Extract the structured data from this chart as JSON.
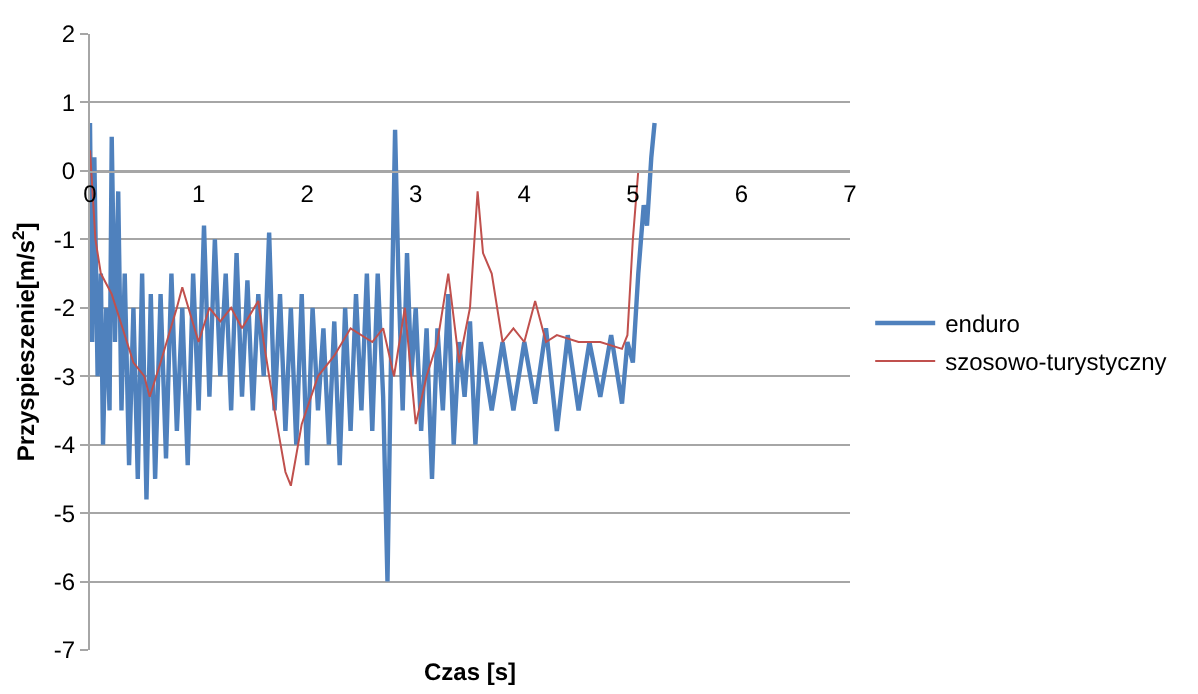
{
  "chart_data": {
    "type": "line",
    "xlabel": "Czas [s]",
    "ylabel": "Przyspieszenie[m/s$^{2}$]",
    "xlim": [
      0,
      7
    ],
    "xticks": [
      0,
      1,
      2,
      3,
      4,
      5,
      6,
      7
    ],
    "ylim": [
      -7,
      2
    ],
    "yticks": [
      -7,
      -6,
      -5,
      -4,
      -3,
      -2,
      -1,
      0,
      1,
      2
    ],
    "grid": "y",
    "legend": "right",
    "marker": "none",
    "line_style": "solid",
    "series": [
      {
        "name": "enduro",
        "color": "#4f81bd",
        "x": [
          0,
          0.02,
          0.04,
          0.07,
          0.1,
          0.12,
          0.15,
          0.18,
          0.2,
          0.23,
          0.26,
          0.29,
          0.32,
          0.36,
          0.4,
          0.44,
          0.48,
          0.52,
          0.56,
          0.6,
          0.65,
          0.7,
          0.75,
          0.8,
          0.85,
          0.9,
          0.95,
          1.0,
          1.05,
          1.1,
          1.15,
          1.2,
          1.25,
          1.3,
          1.35,
          1.4,
          1.45,
          1.5,
          1.55,
          1.6,
          1.65,
          1.7,
          1.75,
          1.8,
          1.85,
          1.9,
          1.95,
          2.0,
          2.05,
          2.1,
          2.15,
          2.2,
          2.25,
          2.3,
          2.35,
          2.4,
          2.45,
          2.5,
          2.55,
          2.6,
          2.65,
          2.7,
          2.74,
          2.78,
          2.81,
          2.84,
          2.88,
          2.92,
          2.96,
          3.0,
          3.05,
          3.1,
          3.15,
          3.2,
          3.25,
          3.3,
          3.35,
          3.4,
          3.45,
          3.5,
          3.55,
          3.6,
          3.7,
          3.8,
          3.9,
          4.0,
          4.1,
          4.2,
          4.3,
          4.4,
          4.5,
          4.6,
          4.7,
          4.8,
          4.9,
          4.95,
          5.0,
          5.05,
          5.1,
          5.13,
          5.17,
          5.2
        ],
        "values": [
          0.7,
          -2.5,
          0.2,
          -3,
          -1.5,
          -4.0,
          -2,
          -3.5,
          0.5,
          -2.5,
          -0.3,
          -3.5,
          -1.5,
          -4.3,
          -2,
          -4.5,
          -1.5,
          -4.8,
          -1.8,
          -4.5,
          -1.8,
          -4.2,
          -1.5,
          -3.8,
          -2.0,
          -4.3,
          -1.5,
          -3.5,
          -0.8,
          -3.3,
          -1.0,
          -3.0,
          -1.5,
          -3.5,
          -1.2,
          -3.3,
          -1.6,
          -3.5,
          -1.8,
          -3.0,
          -0.9,
          -3.5,
          -1.8,
          -3.8,
          -2.0,
          -4.0,
          -1.8,
          -4.3,
          -2.0,
          -3.5,
          -2.3,
          -4.0,
          -2.2,
          -4.3,
          -2.0,
          -3.8,
          -1.8,
          -3.5,
          -1.5,
          -3.8,
          -1.5,
          -3.3,
          -6.0,
          -2.0,
          0.6,
          -1.5,
          -3.5,
          -1.2,
          -3.0,
          -2.0,
          -3.8,
          -2.3,
          -4.5,
          -2.3,
          -3.5,
          -1.8,
          -4.0,
          -2.5,
          -3.3,
          -2.2,
          -4.0,
          -2.5,
          -3.5,
          -2.5,
          -3.5,
          -2.5,
          -3.4,
          -2.3,
          -3.8,
          -2.4,
          -3.5,
          -2.5,
          -3.3,
          -2.4,
          -3.4,
          -2.5,
          -2.8,
          -1.5,
          -0.5,
          -0.8,
          0.2,
          0.7
        ]
      },
      {
        "name": "szosowo-turystyczny",
        "color": "#c0504d",
        "x": [
          0,
          0.05,
          0.1,
          0.2,
          0.3,
          0.4,
          0.5,
          0.55,
          0.65,
          0.8,
          0.85,
          1.0,
          1.1,
          1.2,
          1.3,
          1.4,
          1.55,
          1.6,
          1.7,
          1.8,
          1.85,
          1.95,
          2.1,
          2.25,
          2.4,
          2.6,
          2.7,
          2.8,
          2.9,
          3.0,
          3.1,
          3.2,
          3.3,
          3.4,
          3.5,
          3.57,
          3.62,
          3.7,
          3.8,
          3.9,
          4.0,
          4.1,
          4.2,
          4.3,
          4.5,
          4.7,
          4.9,
          4.95,
          5.0,
          5.05
        ],
        "values": [
          0.3,
          -1.0,
          -1.5,
          -1.8,
          -2.3,
          -2.8,
          -3.0,
          -3.3,
          -2.8,
          -2.0,
          -1.7,
          -2.5,
          -2.0,
          -2.2,
          -2.0,
          -2.3,
          -1.9,
          -2.5,
          -3.5,
          -4.4,
          -4.6,
          -3.7,
          -3.0,
          -2.7,
          -2.3,
          -2.5,
          -2.3,
          -3.0,
          -2.0,
          -3.7,
          -3.0,
          -2.5,
          -1.5,
          -2.8,
          -2.0,
          -0.3,
          -1.2,
          -1.5,
          -2.5,
          -2.3,
          -2.5,
          -1.9,
          -2.5,
          -2.4,
          -2.5,
          -2.5,
          -2.6,
          -2.4,
          -1.0,
          0.0
        ]
      }
    ]
  }
}
